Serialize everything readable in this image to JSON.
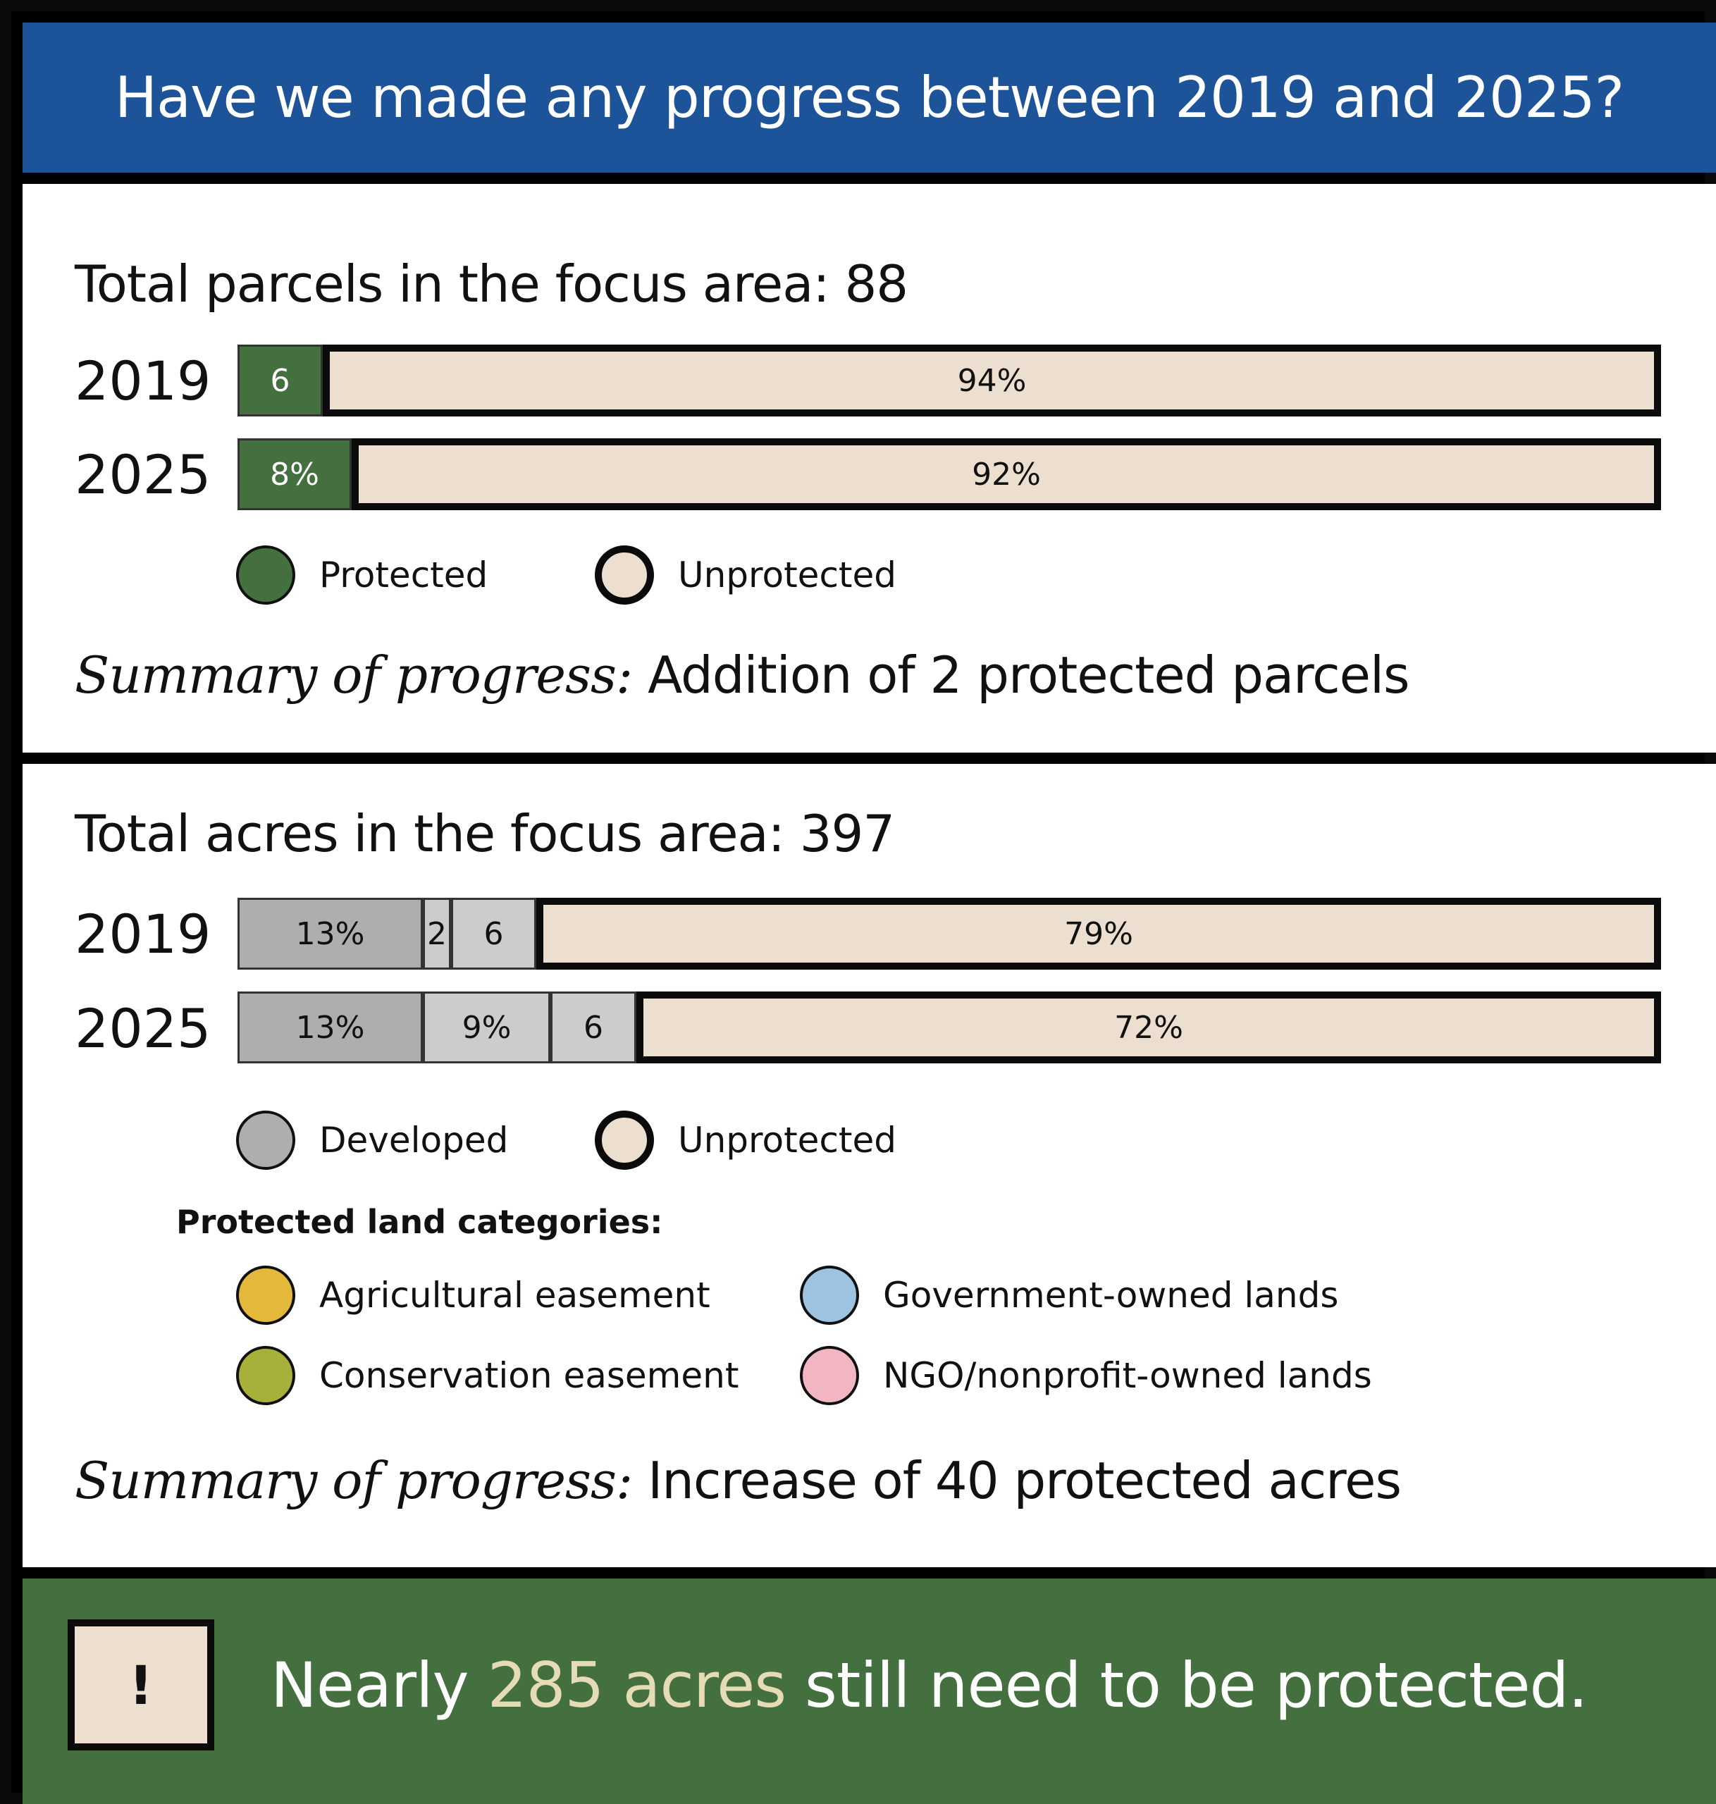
{
  "title": "Have we made any progress between 2019 and 2025?",
  "colors": {
    "header_bg": "#1d5399",
    "footer_bg": "#446f3e",
    "protected": "#446f3e",
    "unprotected": "#ecdfcf",
    "developed": "#aeaeae",
    "agricultural_easement": "#e3b83b",
    "conservation_easement": "#a6b03a",
    "government_owned": "#9ec3e0",
    "ngo_owned": "#f2b6c3",
    "highlight_text": "#e5dbb6"
  },
  "parcels": {
    "title": "Total parcels in the focus area: 88",
    "legend": {
      "protected": "Protected",
      "unprotected": "Unprotected"
    },
    "summary_label": "Summary of progress:",
    "summary_text": "Addition of 2 protected parcels"
  },
  "acres": {
    "title": "Total acres in the focus area: 397",
    "legend": {
      "developed": "Developed",
      "unprotected": "Unprotected"
    },
    "categories_heading": "Protected land categories:",
    "categories": {
      "agricultural": "Agricultural easement",
      "government": "Government-owned lands",
      "conservation": "Conservation easement",
      "ngo": "NGO/nonprofit-owned lands"
    },
    "summary_label": "Summary of progress:",
    "summary_text": "Increase of 40 protected acres"
  },
  "alert": {
    "icon": "!",
    "prefix": "Nearly ",
    "highlight": "285 acres",
    "suffix": " still need to be protected."
  },
  "chart_data": [
    {
      "type": "bar",
      "orientation": "horizontal",
      "stacked": true,
      "title": "Total parcels in the focus area: 88",
      "categories": [
        "2019",
        "2025"
      ],
      "series": [
        {
          "key": "protected",
          "name": "Protected",
          "values": [
            6,
            8
          ],
          "labels": [
            "6",
            "8%"
          ],
          "border": "thin"
        },
        {
          "key": "unprotected",
          "name": "Unprotected",
          "values": [
            94,
            92
          ],
          "labels": [
            "94%",
            "92%"
          ],
          "border": "thick"
        }
      ]
    },
    {
      "type": "bar",
      "orientation": "horizontal",
      "stacked": true,
      "title": "Total acres in the focus area: 397",
      "categories": [
        "2019",
        "2025"
      ],
      "series": [
        {
          "key": "developed",
          "name": "Developed",
          "values": [
            13,
            13
          ],
          "labels": [
            "13%",
            "13%"
          ],
          "border": "thin"
        },
        {
          "key": "conservation",
          "name": "Conservation easement",
          "values": [
            2,
            9
          ],
          "labels": [
            "2",
            "9%"
          ],
          "border": "thin"
        },
        {
          "key": "ngo",
          "name": "NGO/nonprofit-owned lands",
          "values": [
            6,
            6
          ],
          "labels": [
            "6",
            "6"
          ],
          "border": "thin"
        },
        {
          "key": "unprotected",
          "name": "Unprotected",
          "values": [
            79,
            72
          ],
          "labels": [
            "79%",
            "72%"
          ],
          "border": "thick"
        }
      ]
    }
  ]
}
